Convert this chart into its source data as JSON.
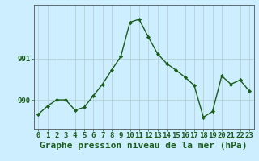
{
  "x": [
    0,
    1,
    2,
    3,
    4,
    5,
    6,
    7,
    8,
    9,
    10,
    11,
    12,
    13,
    14,
    15,
    16,
    17,
    18,
    19,
    20,
    21,
    22,
    23
  ],
  "y": [
    989.65,
    989.85,
    990.0,
    990.0,
    989.75,
    989.82,
    990.1,
    990.38,
    990.72,
    991.05,
    991.88,
    991.95,
    991.52,
    991.12,
    990.88,
    990.72,
    990.55,
    990.35,
    989.58,
    989.72,
    990.58,
    990.38,
    990.48,
    990.22
  ],
  "xlim": [
    -0.5,
    23.5
  ],
  "ylim": [
    989.3,
    992.3
  ],
  "yticks": [
    990,
    991
  ],
  "xticks": [
    0,
    1,
    2,
    3,
    4,
    5,
    6,
    7,
    8,
    9,
    10,
    11,
    12,
    13,
    14,
    15,
    16,
    17,
    18,
    19,
    20,
    21,
    22,
    23
  ],
  "xlabel": "Graphe pression niveau de la mer (hPa)",
  "line_color": "#1a5c1a",
  "marker_color": "#1a5c1a",
  "bg_color": "#cceeff",
  "grid_color": "#b0cccc",
  "text_color": "#1a5c1a",
  "xlabel_fontsize": 8.0,
  "tick_fontsize": 6.5
}
